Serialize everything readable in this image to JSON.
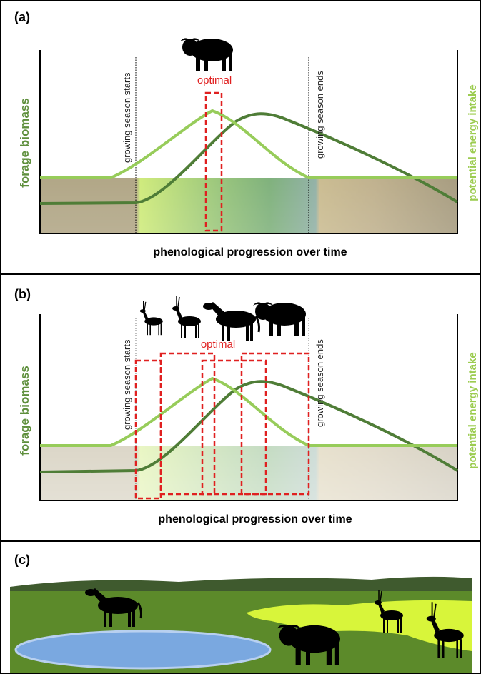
{
  "panels": [
    {
      "label": "(a)",
      "y_axis_label": "forage biomass",
      "y2_axis_label": "potential energy intake",
      "start_label": "growing season starts",
      "end_label": "growing season ends",
      "optimal_label": "optimal",
      "x_axis_label": "phenological progression over time"
    },
    {
      "label": "(b)",
      "y_axis_label": "forage biomass",
      "y2_axis_label": "potential energy intake",
      "start_label": "growing season starts",
      "end_label": "growing season ends",
      "optimal_label": "optimal",
      "x_axis_label": "phenological progression over time"
    },
    {
      "label": "(c)"
    }
  ]
}
